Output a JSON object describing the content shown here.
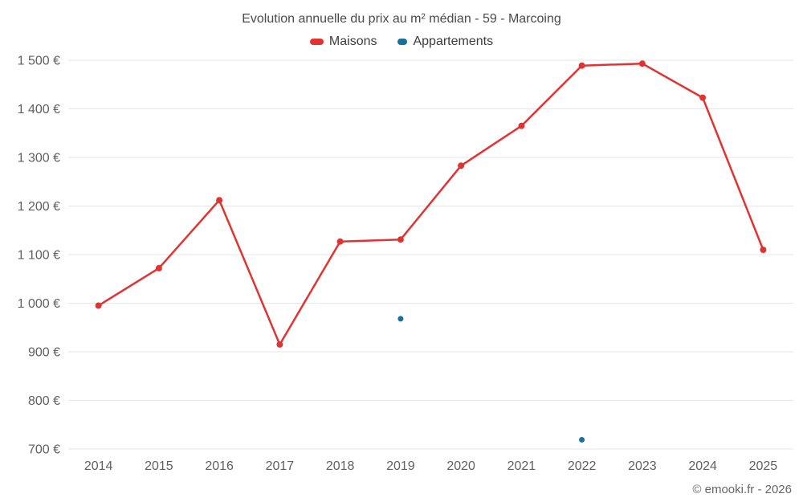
{
  "title": "Evolution annuelle du prix au m² médian - 59 - Marcoing",
  "legend": {
    "items": [
      {
        "label": "Maisons"
      },
      {
        "label": "Appartements"
      }
    ]
  },
  "footer": {
    "copyright": "© emooki.fr - 2026"
  },
  "chart_data": {
    "type": "line",
    "title": "Evolution annuelle du prix au m² médian - 59 - Marcoing",
    "x": [
      2014,
      2015,
      2016,
      2017,
      2018,
      2019,
      2020,
      2021,
      2022,
      2023,
      2024,
      2025
    ],
    "series": [
      {
        "name": "Maisons",
        "color": "#e23333",
        "marker_radius": 4,
        "values": [
          995,
          1072,
          1212,
          915,
          1127,
          1131,
          1283,
          1365,
          1489,
          1493,
          1423,
          1110
        ]
      },
      {
        "name": "Appartements",
        "color": "#1a709d",
        "marker_radius": 3.5,
        "values": [
          null,
          null,
          null,
          null,
          null,
          968,
          null,
          null,
          719,
          null,
          null,
          null
        ]
      }
    ],
    "xlabel": "",
    "ylabel": "",
    "ylim": [
      700,
      1500
    ],
    "ytick_step": 100,
    "ytick_suffix": " €",
    "grid": true,
    "legend_position": "top"
  }
}
